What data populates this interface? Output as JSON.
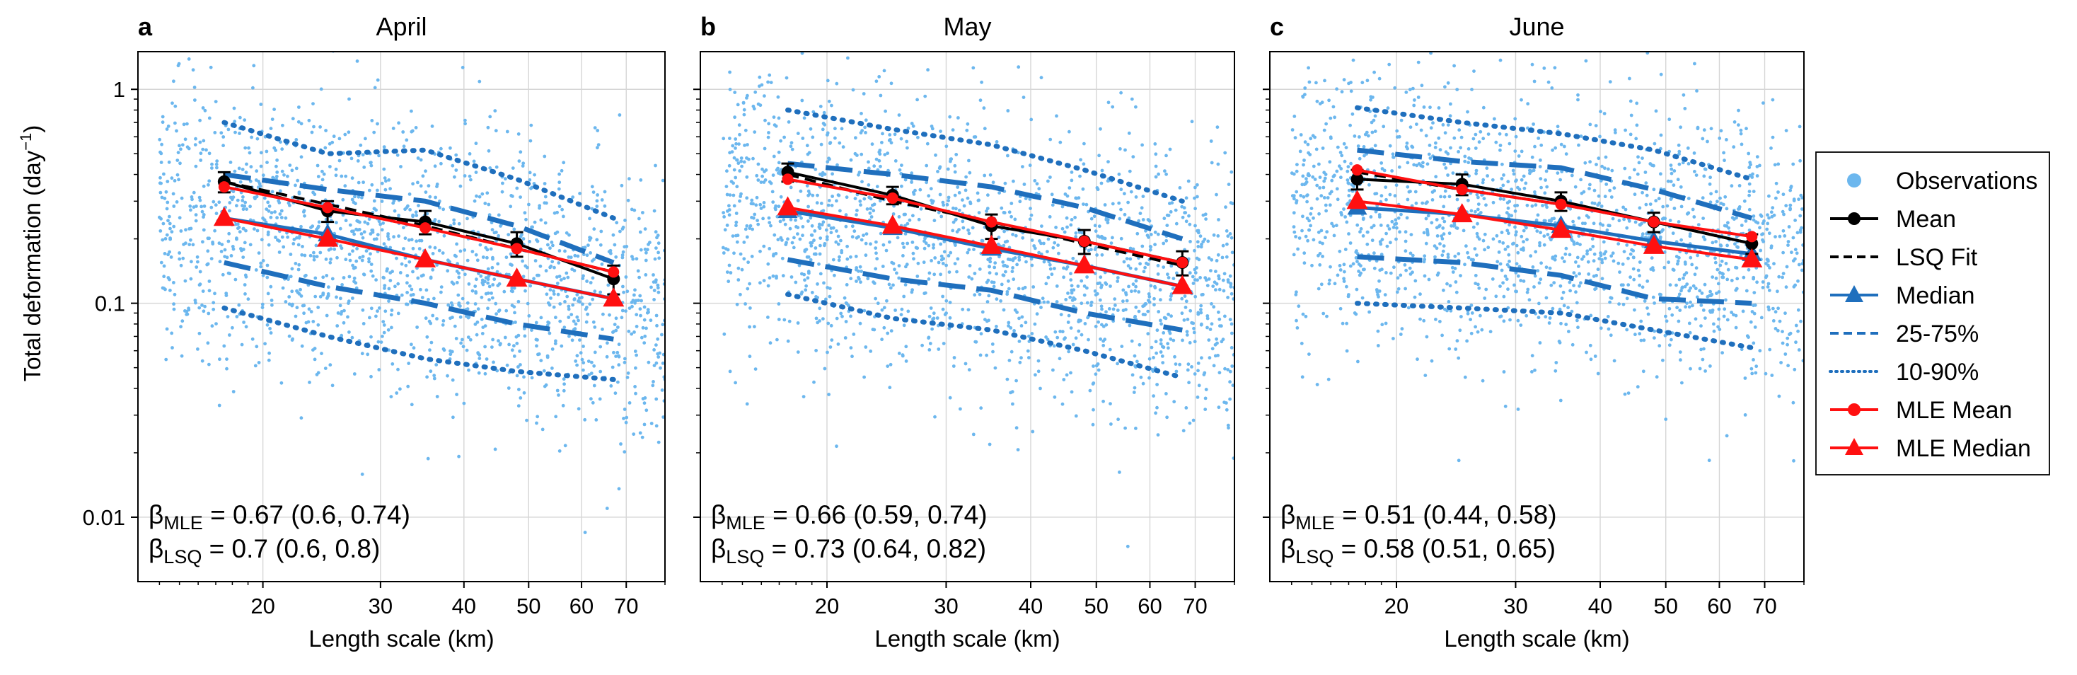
{
  "figure": {
    "ylabel": "Total deformation (day",
    "ylabel_sup": "−1",
    "ylabel_close": ")",
    "xlabel": "Length scale (km)"
  },
  "legend": {
    "placement": "right",
    "entries": [
      {
        "label": "Observations",
        "marker": "circle",
        "line": "none",
        "color": "#6cb7ee"
      },
      {
        "label": "Mean",
        "marker": "circle",
        "line": "solid",
        "color": "#000000"
      },
      {
        "label": "LSQ Fit",
        "marker": "none",
        "line": "dashed",
        "color": "#000000"
      },
      {
        "label": "Median",
        "marker": "triangle",
        "line": "solid",
        "color": "#1f6fbd"
      },
      {
        "label": "25-75%",
        "marker": "none",
        "line": "dashed",
        "color": "#1f6fbd"
      },
      {
        "label": "10-90%",
        "marker": "none",
        "line": "dotted",
        "color": "#1f6fbd"
      },
      {
        "label": "MLE Mean",
        "marker": "circle",
        "line": "solid",
        "color": "#ff1010"
      },
      {
        "label": "MLE Median",
        "marker": "triangle",
        "line": "solid",
        "color": "#ff1010"
      }
    ]
  },
  "colors": {
    "observations": "#6cb7ee",
    "quantiles": "#1f6fbd",
    "mle": "#ff1010",
    "mean": "#000000"
  },
  "chart_data": [
    {
      "type": "scatter",
      "letter": "a",
      "title": "April",
      "xscale": "log",
      "yscale": "log",
      "xlim": [
        13,
        80
      ],
      "ylim": [
        0.005,
        1.5
      ],
      "xticks": [
        20,
        30,
        40,
        50,
        60,
        70
      ],
      "yticks": [
        0.01,
        0.1,
        1
      ],
      "grid": true,
      "x": [
        17.5,
        25,
        35,
        48,
        67
      ],
      "series": [
        {
          "name": "Mean",
          "values": [
            0.37,
            0.27,
            0.24,
            0.19,
            0.13
          ],
          "err": [
            0.04,
            0.03,
            0.03,
            0.025,
            0.02
          ]
        },
        {
          "name": "LSQ Fit",
          "values": [
            0.37,
            0.29,
            0.23,
            0.18,
            0.14
          ]
        },
        {
          "name": "Median",
          "values": [
            0.25,
            0.21,
            0.16,
            0.13,
            0.105
          ]
        },
        {
          "name": "25-75%",
          "values_low": [
            0.155,
            0.12,
            0.1,
            0.08,
            0.068
          ],
          "values_high": [
            0.4,
            0.34,
            0.3,
            0.23,
            0.155
          ]
        },
        {
          "name": "10-90%",
          "values_low": [
            0.095,
            0.07,
            0.055,
            0.048,
            0.044
          ],
          "values_high": [
            0.7,
            0.5,
            0.52,
            0.38,
            0.25
          ]
        },
        {
          "name": "MLE Mean",
          "values": [
            0.35,
            0.28,
            0.225,
            0.18,
            0.14
          ]
        },
        {
          "name": "MLE Median",
          "values": [
            0.25,
            0.2,
            0.16,
            0.13,
            0.105
          ]
        }
      ],
      "beta_mle": {
        "sym": "β",
        "sub": "MLE",
        "text": " = 0.67 (0.6, 0.74)"
      },
      "beta_lsq": {
        "sym": "β",
        "sub": "LSQ",
        "text": " = 0.7 (0.6, 0.8)"
      }
    },
    {
      "type": "scatter",
      "letter": "b",
      "title": "May",
      "xscale": "log",
      "yscale": "log",
      "xlim": [
        13,
        80
      ],
      "ylim": [
        0.005,
        1.5
      ],
      "xticks": [
        20,
        30,
        40,
        50,
        60,
        70
      ],
      "yticks": [
        0.01,
        0.1,
        1
      ],
      "grid": true,
      "x": [
        17.5,
        25,
        35,
        48,
        67
      ],
      "series": [
        {
          "name": "Mean",
          "values": [
            0.41,
            0.32,
            0.23,
            0.195,
            0.155
          ],
          "err": [
            0.04,
            0.03,
            0.03,
            0.025,
            0.02
          ]
        },
        {
          "name": "LSQ Fit",
          "values": [
            0.4,
            0.3,
            0.24,
            0.19,
            0.15
          ]
        },
        {
          "name": "Median",
          "values": [
            0.27,
            0.225,
            0.18,
            0.15,
            0.12
          ]
        },
        {
          "name": "25-75%",
          "values_low": [
            0.16,
            0.13,
            0.115,
            0.09,
            0.075
          ],
          "values_high": [
            0.45,
            0.4,
            0.35,
            0.28,
            0.2
          ]
        },
        {
          "name": "10-90%",
          "values_low": [
            0.11,
            0.085,
            0.075,
            0.06,
            0.045
          ],
          "values_high": [
            0.8,
            0.65,
            0.55,
            0.42,
            0.3
          ]
        },
        {
          "name": "MLE Mean",
          "values": [
            0.38,
            0.31,
            0.24,
            0.195,
            0.155
          ]
        },
        {
          "name": "MLE Median",
          "values": [
            0.28,
            0.23,
            0.185,
            0.15,
            0.12
          ]
        }
      ],
      "beta_mle": {
        "sym": "β",
        "sub": "MLE",
        "text": " = 0.66 (0.59, 0.74)"
      },
      "beta_lsq": {
        "sym": "β",
        "sub": "LSQ",
        "text": " = 0.73 (0.64, 0.82)"
      }
    },
    {
      "type": "scatter",
      "letter": "c",
      "title": "June",
      "xscale": "log",
      "yscale": "log",
      "xlim": [
        13,
        80
      ],
      "ylim": [
        0.005,
        1.5
      ],
      "xticks": [
        20,
        30,
        40,
        50,
        60,
        70
      ],
      "yticks": [
        0.01,
        0.1,
        1
      ],
      "grid": true,
      "x": [
        17.5,
        25,
        35,
        48,
        67
      ],
      "series": [
        {
          "name": "Mean",
          "values": [
            0.38,
            0.36,
            0.3,
            0.24,
            0.19
          ],
          "err": [
            0.04,
            0.04,
            0.03,
            0.025,
            0.02
          ]
        },
        {
          "name": "LSQ Fit",
          "values": [
            0.41,
            0.34,
            0.29,
            0.24,
            0.19
          ]
        },
        {
          "name": "Median",
          "values": [
            0.28,
            0.26,
            0.23,
            0.195,
            0.17
          ]
        },
        {
          "name": "25-75%",
          "values_low": [
            0.165,
            0.155,
            0.135,
            0.105,
            0.1
          ],
          "values_high": [
            0.52,
            0.46,
            0.43,
            0.34,
            0.25
          ]
        },
        {
          "name": "10-90%",
          "values_low": [
            0.1,
            0.095,
            0.09,
            0.075,
            0.062
          ],
          "values_high": [
            0.82,
            0.7,
            0.62,
            0.52,
            0.38
          ]
        },
        {
          "name": "MLE Mean",
          "values": [
            0.42,
            0.34,
            0.29,
            0.24,
            0.205
          ]
        },
        {
          "name": "MLE Median",
          "values": [
            0.3,
            0.26,
            0.22,
            0.185,
            0.16
          ]
        }
      ],
      "beta_mle": {
        "sym": "β",
        "sub": "MLE",
        "text": " = 0.51 (0.44, 0.58)"
      },
      "beta_lsq": {
        "sym": "β",
        "sub": "LSQ",
        "text": " = 0.58 (0.51, 0.65)"
      }
    }
  ]
}
